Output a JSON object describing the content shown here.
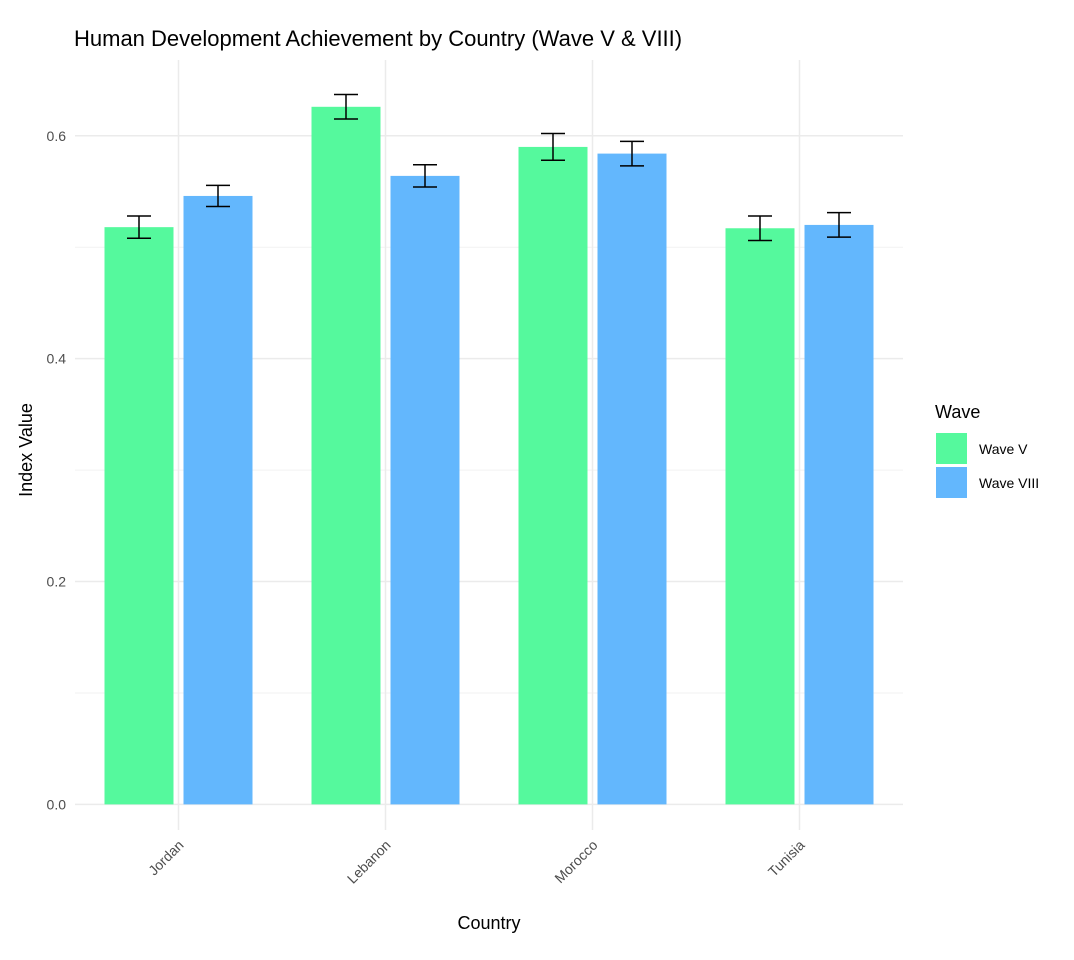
{
  "chart_data": {
    "type": "bar",
    "title": "Human Development Achievement by Country (Wave V & VIII)",
    "xlabel": "Country",
    "ylabel": "Index Value",
    "categories": [
      "Jordan",
      "Lebanon",
      "Morocco",
      "Tunisia"
    ],
    "series": [
      {
        "name": "Wave V",
        "color": "#55F99D",
        "values": [
          0.518,
          0.626,
          0.59,
          0.517
        ],
        "errors": [
          0.01,
          0.011,
          0.012,
          0.011
        ]
      },
      {
        "name": "Wave VIII",
        "color": "#63B7FD",
        "values": [
          0.546,
          0.564,
          0.584,
          0.52
        ],
        "errors": [
          0.0095,
          0.01,
          0.011,
          0.011
        ]
      }
    ],
    "ylim": [
      -0.023,
      0.668
    ],
    "yticks": [
      0.0,
      0.2,
      0.4,
      0.6
    ],
    "ytick_labels": [
      "0.0",
      "0.2",
      "0.4",
      "0.6"
    ],
    "grid": true,
    "legend": {
      "title": "Wave",
      "placement": "right"
    }
  }
}
